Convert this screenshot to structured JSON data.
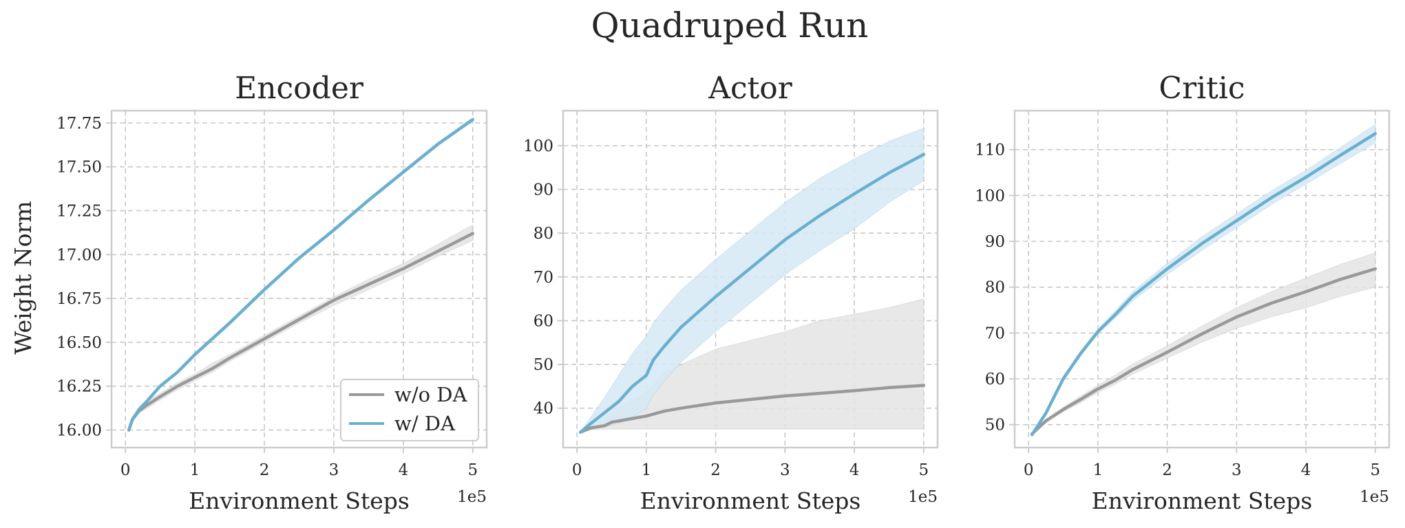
{
  "figure": {
    "title": "Quadruped Run"
  },
  "colors": {
    "wo_da": "#999999",
    "w_da": "#6aafcf",
    "wo_da_band": "#e4e4e4",
    "w_da_band": "#d5e9f4"
  },
  "legend": {
    "entries": [
      "w/o DA",
      "w/ DA"
    ]
  },
  "chart_data": [
    {
      "type": "line",
      "title": "Encoder",
      "xlabel": "Environment Steps",
      "ylabel": "Weight Norm",
      "x_offset_label": "1e5",
      "xlim": [
        -0.2,
        5.2
      ],
      "ylim": [
        15.9,
        17.82
      ],
      "xticks": [
        0,
        1,
        2,
        3,
        4,
        5
      ],
      "yticks": [
        16.0,
        16.25,
        16.5,
        16.75,
        17.0,
        17.25,
        17.5,
        17.75
      ],
      "ytick_labels": [
        "16.00",
        "16.25",
        "16.50",
        "16.75",
        "17.00",
        "17.25",
        "17.50",
        "17.75"
      ],
      "grid": true,
      "legend_position": "lower-right",
      "series": [
        {
          "name": "w/o DA",
          "x": [
            0.05,
            0.1,
            0.2,
            0.3,
            0.5,
            0.75,
            1.0,
            1.25,
            1.5,
            2.0,
            2.5,
            3.0,
            3.5,
            4.0,
            4.5,
            5.0
          ],
          "y": [
            16.0,
            16.06,
            16.11,
            16.14,
            16.19,
            16.25,
            16.3,
            16.35,
            16.41,
            16.52,
            16.63,
            16.74,
            16.83,
            16.92,
            17.02,
            17.12
          ],
          "lower": [
            16.0,
            16.05,
            16.1,
            16.12,
            16.17,
            16.23,
            16.28,
            16.33,
            16.39,
            16.5,
            16.61,
            16.71,
            16.8,
            16.89,
            16.99,
            17.08
          ],
          "upper": [
            16.0,
            16.07,
            16.12,
            16.16,
            16.21,
            16.27,
            16.32,
            16.38,
            16.43,
            16.54,
            16.65,
            16.76,
            16.86,
            16.95,
            17.06,
            17.17
          ]
        },
        {
          "name": "w/ DA",
          "x": [
            0.05,
            0.1,
            0.2,
            0.3,
            0.5,
            0.75,
            1.0,
            1.25,
            1.5,
            2.0,
            2.5,
            3.0,
            3.5,
            4.0,
            4.5,
            5.0
          ],
          "y": [
            16.0,
            16.06,
            16.12,
            16.16,
            16.25,
            16.33,
            16.43,
            16.52,
            16.61,
            16.8,
            16.98,
            17.14,
            17.31,
            17.47,
            17.63,
            17.77
          ],
          "lower": [
            16.0,
            16.05,
            16.11,
            16.15,
            16.24,
            16.32,
            16.42,
            16.51,
            16.6,
            16.79,
            16.97,
            17.13,
            17.3,
            17.46,
            17.62,
            17.76
          ],
          "upper": [
            16.0,
            16.07,
            16.13,
            16.17,
            16.26,
            16.34,
            16.44,
            16.53,
            16.62,
            16.81,
            16.99,
            17.15,
            17.32,
            17.48,
            17.64,
            17.78
          ]
        }
      ]
    },
    {
      "type": "line",
      "title": "Actor",
      "xlabel": "Environment Steps",
      "ylabel": "",
      "x_offset_label": "1e5",
      "xlim": [
        -0.2,
        5.2
      ],
      "ylim": [
        31.0,
        108.0
      ],
      "xticks": [
        0,
        1,
        2,
        3,
        4,
        5
      ],
      "yticks": [
        40,
        50,
        60,
        70,
        80,
        90,
        100
      ],
      "ytick_labels": [
        "40",
        "50",
        "60",
        "70",
        "80",
        "90",
        "100"
      ],
      "grid": true,
      "series": [
        {
          "name": "w/o DA",
          "x": [
            0.05,
            0.2,
            0.4,
            0.5,
            0.75,
            1.0,
            1.25,
            1.5,
            2.0,
            2.5,
            3.0,
            3.5,
            4.0,
            4.5,
            5.0
          ],
          "y": [
            34.5,
            35.5,
            36.0,
            36.8,
            37.5,
            38.2,
            39.3,
            40.0,
            41.2,
            42.0,
            42.8,
            43.4,
            44.0,
            44.7,
            45.2
          ],
          "lower": [
            34.5,
            35.0,
            35.2,
            35.2,
            35.2,
            35.2,
            35.2,
            35.2,
            35.2,
            35.2,
            35.2,
            35.2,
            35.2,
            35.2,
            35.2
          ],
          "upper": [
            34.5,
            36.0,
            37.5,
            39.0,
            41.5,
            43.5,
            48.0,
            50.0,
            53.5,
            55.5,
            57.5,
            60.0,
            61.5,
            63.0,
            65.0
          ]
        },
        {
          "name": "w/ DA",
          "x": [
            0.05,
            0.2,
            0.4,
            0.6,
            0.8,
            1.0,
            1.1,
            1.25,
            1.5,
            2.0,
            2.5,
            3.0,
            3.5,
            4.0,
            4.5,
            5.0
          ],
          "y": [
            34.5,
            36.5,
            39.0,
            41.5,
            45.0,
            47.5,
            51.0,
            54.0,
            58.5,
            65.5,
            72.0,
            78.5,
            84.0,
            89.0,
            93.8,
            98.0
          ],
          "lower": [
            34.5,
            35.5,
            35.8,
            36.5,
            38.0,
            40.0,
            43.0,
            46.0,
            50.5,
            57.5,
            64.0,
            70.5,
            76.0,
            81.0,
            87.0,
            92.0
          ],
          "upper": [
            34.5,
            38.0,
            42.5,
            47.5,
            52.5,
            56.5,
            59.5,
            62.5,
            67.0,
            74.0,
            80.5,
            87.0,
            92.5,
            97.0,
            101.0,
            104.0
          ]
        }
      ]
    },
    {
      "type": "line",
      "title": "Critic",
      "xlabel": "Environment Steps",
      "ylabel": "",
      "x_offset_label": "1e5",
      "xlim": [
        -0.2,
        5.2
      ],
      "ylim": [
        45.0,
        118.5
      ],
      "xticks": [
        0,
        1,
        2,
        3,
        4,
        5
      ],
      "yticks": [
        50,
        60,
        70,
        80,
        90,
        100,
        110
      ],
      "ytick_labels": [
        "50",
        "60",
        "70",
        "80",
        "90",
        "100",
        "110"
      ],
      "grid": true,
      "series": [
        {
          "name": "w/o DA",
          "x": [
            0.05,
            0.25,
            0.5,
            0.75,
            1.0,
            1.25,
            1.5,
            2.0,
            2.5,
            3.0,
            3.5,
            4.0,
            4.5,
            5.0
          ],
          "y": [
            48.0,
            50.8,
            53.3,
            55.5,
            57.8,
            59.7,
            62.0,
            65.8,
            69.8,
            73.5,
            76.5,
            79.0,
            81.7,
            84.0
          ],
          "lower": [
            48.0,
            50.5,
            52.8,
            54.8,
            57.0,
            58.8,
            61.0,
            64.5,
            68.0,
            71.0,
            73.5,
            75.5,
            78.0,
            80.0
          ],
          "upper": [
            48.0,
            51.2,
            53.8,
            56.2,
            58.6,
            60.8,
            63.2,
            67.2,
            71.5,
            75.5,
            79.0,
            82.0,
            85.0,
            87.5
          ]
        },
        {
          "name": "w/ DA",
          "x": [
            0.05,
            0.25,
            0.5,
            0.75,
            1.0,
            1.25,
            1.5,
            2.0,
            2.5,
            3.0,
            3.5,
            4.0,
            4.5,
            5.0
          ],
          "y": [
            47.8,
            52.5,
            60.0,
            65.5,
            70.3,
            74.0,
            78.0,
            84.0,
            89.5,
            94.5,
            99.5,
            104.0,
            108.8,
            113.5
          ],
          "lower": [
            47.8,
            52.0,
            59.5,
            65.0,
            69.8,
            73.3,
            77.0,
            82.8,
            88.0,
            93.0,
            98.0,
            102.5,
            107.0,
            111.5
          ],
          "upper": [
            47.8,
            53.0,
            60.5,
            66.0,
            70.8,
            74.8,
            79.0,
            85.2,
            91.0,
            96.0,
            101.0,
            105.5,
            110.5,
            115.5
          ]
        }
      ]
    }
  ]
}
